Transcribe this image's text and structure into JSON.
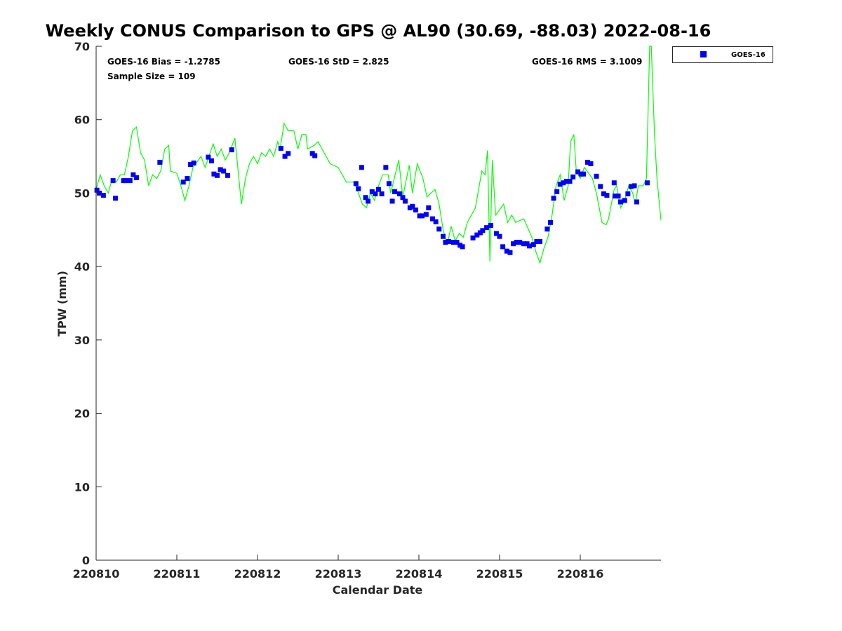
{
  "chart_data": {
    "type": "line+scatter",
    "title": "Weekly CONUS Comparison to GPS @ AL90 (30.69, -88.03) 2022-08-16",
    "xlabel": "Calendar Date",
    "ylabel": "TPW (mm)",
    "xlim_days": [
      0,
      7
    ],
    "ylim": [
      0,
      70
    ],
    "x_tick_labels": [
      "220810",
      "220811",
      "220812",
      "220813",
      "220814",
      "220815",
      "220816"
    ],
    "y_ticks": [
      0,
      10,
      20,
      30,
      40,
      50,
      60,
      70
    ],
    "stats": {
      "bias": "GOES-16 Bias = -1.2785",
      "std": "GOES-16 StD = 2.825",
      "rms": "GOES-16 RMS = 3.1009",
      "sample": "Sample Size = 109"
    },
    "legend": {
      "label": "GOES-16",
      "placement": "outside-top-right"
    },
    "colors": {
      "goes": "#0000ff",
      "gps": "#00ff00"
    },
    "series": [
      {
        "name": "GPS",
        "kind": "line",
        "x": [
          0,
          0.05,
          0.1,
          0.15,
          0.2,
          0.25,
          0.3,
          0.35,
          0.4,
          0.45,
          0.5,
          0.55,
          0.6,
          0.65,
          0.7,
          0.75,
          0.8,
          0.85,
          0.9,
          0.92,
          1.0,
          1.05,
          1.1,
          1.15,
          1.2,
          1.3,
          1.35,
          1.45,
          1.5,
          1.55,
          1.6,
          1.65,
          1.72,
          1.8,
          1.85,
          1.9,
          1.95,
          2.0,
          2.05,
          2.1,
          2.15,
          2.2,
          2.25,
          2.28,
          2.33,
          2.38,
          2.45,
          2.5,
          2.55,
          2.6,
          2.62,
          2.7,
          2.75,
          2.8,
          2.9,
          3.0,
          3.1,
          3.2,
          3.3,
          3.35,
          3.4,
          3.45,
          3.5,
          3.55,
          3.62,
          3.65,
          3.75,
          3.8,
          3.88,
          3.92,
          3.98,
          4.05,
          4.1,
          4.15,
          4.2,
          4.25,
          4.3,
          4.35,
          4.4,
          4.45,
          4.5,
          4.55,
          4.6,
          4.7,
          4.78,
          4.82,
          4.85,
          4.88,
          4.91,
          4.95,
          5.05,
          5.1,
          5.15,
          5.2,
          5.3,
          5.4,
          5.45,
          5.5,
          5.55,
          5.6,
          5.65,
          5.7,
          5.75,
          5.8,
          5.85,
          5.88,
          5.92,
          5.95,
          6.0,
          6.05,
          6.15,
          6.2,
          6.27,
          6.32,
          6.35,
          6.42,
          6.45,
          6.5,
          6.55,
          6.6,
          6.65,
          6.68,
          6.72,
          6.78,
          6.82,
          6.86,
          6.88,
          6.92,
          6.95,
          7.0
        ],
        "y": [
          50.5,
          52.5,
          51,
          50,
          52,
          51.5,
          52.5,
          52.5,
          55,
          58.5,
          59,
          55.5,
          54.5,
          51,
          52.5,
          52,
          53,
          56,
          56.5,
          53,
          52.7,
          51,
          49,
          51,
          53.5,
          55,
          53.5,
          56.7,
          55,
          56,
          54.5,
          55.5,
          57.5,
          48.5,
          52,
          54,
          55,
          54,
          55.5,
          55,
          56,
          55,
          57,
          56,
          59.5,
          58.5,
          58.5,
          56,
          58,
          58,
          56,
          56.5,
          57,
          56,
          54,
          53.5,
          51.5,
          51.5,
          48.5,
          48,
          50,
          49,
          51,
          52.5,
          52.5,
          50,
          54.5,
          49.5,
          53.8,
          50,
          54,
          52,
          49.5,
          50,
          50.5,
          48.5,
          45,
          43,
          45.5,
          43.5,
          44.5,
          44,
          46,
          48,
          53,
          52.5,
          55.8,
          40.7,
          54.5,
          47,
          48.5,
          46,
          47,
          46,
          46.5,
          44,
          42,
          40.5,
          42.5,
          44,
          47,
          51,
          52.5,
          49,
          51,
          57,
          58,
          53,
          52,
          53.5,
          52,
          50,
          46,
          45.7,
          46.5,
          50.5,
          51,
          48,
          49,
          51,
          50,
          48.5,
          51,
          51,
          52,
          70,
          70,
          58,
          52,
          46.3
        ]
      },
      {
        "name": "GOES-16",
        "kind": "scatter",
        "x": [
          0.01,
          0.04,
          0.09,
          0.21,
          0.24,
          0.34,
          0.37,
          0.42,
          0.46,
          0.5,
          0.79,
          1.08,
          1.13,
          1.17,
          1.21,
          1.39,
          1.43,
          1.46,
          1.5,
          1.54,
          1.58,
          1.63,
          1.68,
          2.29,
          2.34,
          2.38,
          2.68,
          2.71,
          3.22,
          3.25,
          3.29,
          3.34,
          3.37,
          3.42,
          3.46,
          3.5,
          3.54,
          3.59,
          3.63,
          3.67,
          3.7,
          3.76,
          3.8,
          3.83,
          3.89,
          3.92,
          3.96,
          4.01,
          4.04,
          4.09,
          4.12,
          4.17,
          4.21,
          4.25,
          4.3,
          4.33,
          4.37,
          4.43,
          4.47,
          4.51,
          4.54,
          4.67,
          4.72,
          4.76,
          4.79,
          4.84,
          4.89,
          4.96,
          5.0,
          5.04,
          5.09,
          5.13,
          5.17,
          5.21,
          5.25,
          5.3,
          5.34,
          5.37,
          5.42,
          5.46,
          5.5,
          5.59,
          5.63,
          5.67,
          5.71,
          5.75,
          5.79,
          5.83,
          5.87,
          5.91,
          5.97,
          6.01,
          6.04,
          6.09,
          6.13,
          6.2,
          6.25,
          6.29,
          6.33,
          6.42,
          6.43,
          6.47,
          6.5,
          6.55,
          6.59,
          6.63,
          6.67,
          6.7,
          6.83
        ],
        "y": [
          50.4,
          50.0,
          49.7,
          51.7,
          49.3,
          51.7,
          51.7,
          51.7,
          52.5,
          52.1,
          54.2,
          51.5,
          52.0,
          53.9,
          54.1,
          54.9,
          54.4,
          52.6,
          52.4,
          53.2,
          53.0,
          52.4,
          55.9,
          56.1,
          55.0,
          55.4,
          55.4,
          55.1,
          51.3,
          50.6,
          53.5,
          49.4,
          48.9,
          50.2,
          49.9,
          50.5,
          49.9,
          53.5,
          51.3,
          48.9,
          50.2,
          49.9,
          49.4,
          48.9,
          48.0,
          48.2,
          47.7,
          46.9,
          46.9,
          47.1,
          48.0,
          46.5,
          46.1,
          45.1,
          44.1,
          43.3,
          43.4,
          43.3,
          43.3,
          42.9,
          42.7,
          43.9,
          44.3,
          44.6,
          44.9,
          45.3,
          45.6,
          44.5,
          44.1,
          42.7,
          42.1,
          41.9,
          43.1,
          43.3,
          43.3,
          43.1,
          43.1,
          42.8,
          43.0,
          43.4,
          43.4,
          45.1,
          46.0,
          49.3,
          50.2,
          51.2,
          51.4,
          51.6,
          51.6,
          52.2,
          52.9,
          52.6,
          52.6,
          54.2,
          54.0,
          52.3,
          50.9,
          49.9,
          49.7,
          51.4,
          49.6,
          49.6,
          48.8,
          49.0,
          49.9,
          50.9,
          51.0,
          48.8,
          51.4
        ]
      }
    ]
  }
}
